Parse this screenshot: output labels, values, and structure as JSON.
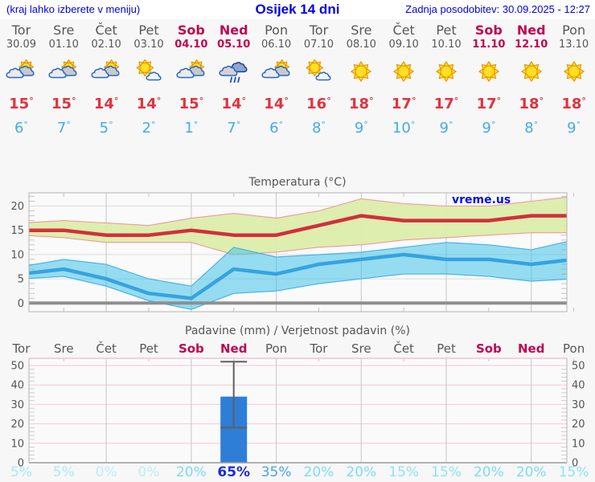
{
  "header": {
    "hint": "(kraj lahko izberete v meniju)",
    "title": "Osijek 14 dni",
    "updated": "Zadnja posodobitev: 30.09.2025 - 12:27"
  },
  "days": [
    {
      "name": "Tor",
      "date": "30.09",
      "weekend": false,
      "icon": "partly-cloudy",
      "tmax": 15,
      "tmin": 6,
      "precip_prob": 5
    },
    {
      "name": "Sre",
      "date": "01.10",
      "weekend": false,
      "icon": "partly-cloudy",
      "tmax": 15,
      "tmin": 7,
      "precip_prob": 5
    },
    {
      "name": "Čet",
      "date": "02.10",
      "weekend": false,
      "icon": "partly-cloudy",
      "tmax": 14,
      "tmin": 5,
      "precip_prob": 0
    },
    {
      "name": "Pet",
      "date": "03.10",
      "weekend": false,
      "icon": "mostly-sunny",
      "tmax": 14,
      "tmin": 2,
      "precip_prob": 0
    },
    {
      "name": "Sob",
      "date": "04.10",
      "weekend": true,
      "icon": "partly-cloudy",
      "tmax": 15,
      "tmin": 1,
      "precip_prob": 20
    },
    {
      "name": "Ned",
      "date": "05.10",
      "weekend": true,
      "icon": "rain",
      "tmax": 14,
      "tmin": 7,
      "precip_prob": 65
    },
    {
      "name": "Pon",
      "date": "06.10",
      "weekend": false,
      "icon": "partly-cloudy",
      "tmax": 14,
      "tmin": 6,
      "precip_prob": 35
    },
    {
      "name": "Tor",
      "date": "07.10",
      "weekend": false,
      "icon": "mostly-sunny",
      "tmax": 16,
      "tmin": 8,
      "precip_prob": 20
    },
    {
      "name": "Sre",
      "date": "08.10",
      "weekend": false,
      "icon": "sunny",
      "tmax": 18,
      "tmin": 9,
      "precip_prob": 20
    },
    {
      "name": "Čet",
      "date": "09.10",
      "weekend": false,
      "icon": "sunny",
      "tmax": 17,
      "tmin": 10,
      "precip_prob": 15
    },
    {
      "name": "Pet",
      "date": "10.10",
      "weekend": false,
      "icon": "sunny",
      "tmax": 17,
      "tmin": 9,
      "precip_prob": 15
    },
    {
      "name": "Sob",
      "date": "11.10",
      "weekend": true,
      "icon": "sunny",
      "tmax": 17,
      "tmin": 9,
      "precip_prob": 20
    },
    {
      "name": "Ned",
      "date": "12.10",
      "weekend": true,
      "icon": "sunny",
      "tmax": 18,
      "tmin": 8,
      "precip_prob": 20
    },
    {
      "name": "Pon",
      "date": "13.10",
      "weekend": false,
      "icon": "sunny",
      "tmax": 18,
      "tmin": 9,
      "precip_prob": 15
    }
  ],
  "charts": {
    "temperature": {
      "title": "Temperatura (°C)",
      "watermark": "vreme.us",
      "y_ticks": [
        0,
        5,
        10,
        15,
        20
      ]
    },
    "precipitation": {
      "title": "Padavine (mm) / Verjetnost padavin (%)",
      "y_ticks": [
        0,
        10,
        20,
        30,
        40,
        50
      ]
    }
  },
  "chart_data": [
    {
      "type": "line",
      "title": "Temperatura (°C)",
      "x_categories": [
        "Tor 30.09",
        "Sre 01.10",
        "Čet 02.10",
        "Pet 03.10",
        "Sob 04.10",
        "Ned 05.10",
        "Pon 06.10",
        "Tor 07.10",
        "Sre 08.10",
        "Čet 09.10",
        "Pet 10.10",
        "Sob 11.10",
        "Ned 12.10",
        "Pon 13.10"
      ],
      "series": [
        {
          "name": "max_temp",
          "color": "#d22f3c",
          "values": [
            15,
            15,
            14,
            14,
            15,
            14,
            14,
            16,
            18,
            17,
            17,
            17,
            18,
            18
          ]
        },
        {
          "name": "min_temp",
          "color": "#36a3e0",
          "values": [
            6,
            7,
            5,
            2,
            1,
            7,
            6,
            8,
            9,
            10,
            9,
            9,
            8,
            9
          ]
        },
        {
          "name": "max_band_upper",
          "color": "#dcedaa",
          "values": [
            16.5,
            17,
            16.5,
            16,
            17.5,
            18.5,
            17.5,
            19,
            21.5,
            20.5,
            20,
            20,
            21,
            22
          ]
        },
        {
          "name": "max_band_lower",
          "color": "#dcedaa",
          "values": [
            14,
            13.5,
            12.5,
            12.5,
            12.5,
            10,
            10.5,
            11.5,
            12,
            13,
            13.5,
            14,
            14.5,
            14.5
          ]
        },
        {
          "name": "min_band_upper",
          "color": "#7fd8ec",
          "values": [
            7.5,
            9,
            8,
            5,
            3.5,
            11.5,
            9.5,
            10,
            10.5,
            11.5,
            12.5,
            12,
            11,
            13
          ]
        },
        {
          "name": "min_band_lower",
          "color": "#7fd8ec",
          "values": [
            5,
            5.5,
            3.5,
            0.5,
            -1.3,
            2,
            2.5,
            4,
            5,
            6,
            6,
            5.5,
            4.5,
            5
          ]
        }
      ],
      "ylim": [
        -2.5,
        23
      ],
      "y_gridlines": [
        0,
        5,
        10,
        15,
        20
      ],
      "ylabel": "°C",
      "legend": "none"
    },
    {
      "type": "bar",
      "title": "Padavine (mm) / Verjetnost padavin (%)",
      "categories": [
        "Tor",
        "Sre",
        "Čet",
        "Pet",
        "Sob",
        "Ned",
        "Pon",
        "Tor",
        "Sre",
        "Čet",
        "Pet",
        "Sob",
        "Ned",
        "Pon"
      ],
      "values": [
        0,
        0,
        0,
        0,
        0,
        34,
        0,
        0,
        0,
        0,
        0,
        0,
        0,
        0
      ],
      "whiskers": [
        {
          "index": 5,
          "low": 18,
          "high": 52
        }
      ],
      "probabilities_pct": [
        5,
        5,
        0,
        0,
        20,
        65,
        35,
        20,
        20,
        15,
        15,
        20,
        20,
        15
      ],
      "ylim": [
        0,
        50
      ],
      "y_gridlines": [
        10,
        20,
        30,
        40,
        50
      ],
      "ylabel": "mm"
    }
  ],
  "colors": {
    "accent_blue": "#0014e6",
    "day_gray": "#57575a",
    "weekend_red": "#c00552",
    "temp_high_red": "#e03340",
    "temp_low_blue": "#45abe8",
    "bar_blue": "#2e7ed8",
    "line_max": "#d22f3c",
    "line_min": "#36a3e0",
    "band_max": "#dcedaa",
    "band_min": "#7fd8ec",
    "zero_line": "#8f8f8f",
    "grid_pink": "#f5c7d4",
    "title_gray": "#555555",
    "prob": {
      "0": "#bceef9",
      "5": "#a8e9f8",
      "15": "#8fe2f5",
      "20": "#7cdcf4",
      "35": "#4aa3e8",
      "65": "#1b2ed1"
    }
  }
}
